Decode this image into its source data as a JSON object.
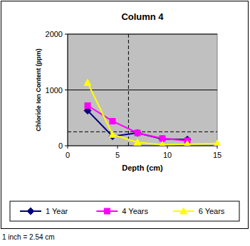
{
  "chart_data": {
    "type": "line",
    "title": "Column 4",
    "x_label": "Depth (cm)",
    "y_label": "Chloride Ion Content (ppm)",
    "x": [
      2,
      4.5,
      7,
      9.5,
      12,
      15
    ],
    "series": [
      {
        "name": "1 Year",
        "color": "#000080",
        "marker": "diamond",
        "values": [
          630,
          170,
          230,
          120,
          110,
          null
        ]
      },
      {
        "name": "4 Years",
        "color": "#ff00ff",
        "marker": "square",
        "values": [
          720,
          440,
          230,
          130,
          90,
          null
        ]
      },
      {
        "name": "6 Years",
        "color": "#ffff00",
        "marker": "triangle",
        "values": [
          1130,
          200,
          60,
          20,
          30,
          40
        ]
      }
    ],
    "xlim": [
      0,
      15
    ],
    "xticks": [
      0,
      5,
      10,
      15
    ],
    "ylim": [
      0,
      2000
    ],
    "yticks": [
      0,
      1000,
      2000
    ],
    "grid": true,
    "legend": "bottom",
    "vlines": [
      6.1
    ],
    "hlines": [
      250
    ],
    "annotations": [
      "1 inch = 2.54 cm"
    ]
  }
}
